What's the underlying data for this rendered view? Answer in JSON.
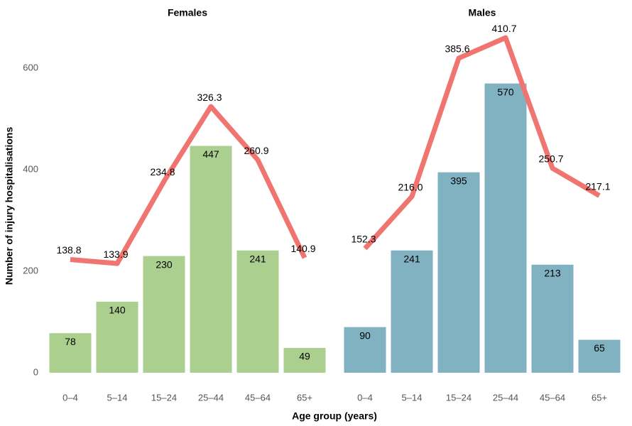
{
  "chart_data": {
    "type": "bar",
    "ylabel": "Number of injury hospitalisations",
    "xlabel": "Age group (years)",
    "ylim": [
      0,
      680
    ],
    "yticks": [
      0,
      200,
      400,
      600
    ],
    "y2lim": [
      0,
      423
    ],
    "categories": [
      "0–4",
      "5–14",
      "15–24",
      "25–44",
      "45–64",
      "65+"
    ],
    "panels": [
      {
        "title": "Females",
        "series": [
          {
            "type": "bar",
            "color": "#abcf8e",
            "values": [
              78,
              140,
              230,
              447,
              241,
              49
            ]
          },
          {
            "type": "line",
            "axis": "y2",
            "color": "#f07470",
            "values": [
              138.8,
              133.9,
              234.8,
              326.3,
              260.9,
              140.9
            ]
          }
        ]
      },
      {
        "title": "Males",
        "series": [
          {
            "type": "bar",
            "color": "#80b2c2",
            "values": [
              90,
              241,
              395,
              570,
              213,
              65
            ]
          },
          {
            "type": "line",
            "axis": "y2",
            "color": "#f07470",
            "values": [
              152.3,
              216.0,
              385.6,
              410.7,
              250.7,
              217.1
            ],
            "value_labels": [
              "152.3",
              "216.0",
              "385.6",
              "410.7",
              "250.7",
              "217.1"
            ]
          }
        ]
      }
    ]
  }
}
